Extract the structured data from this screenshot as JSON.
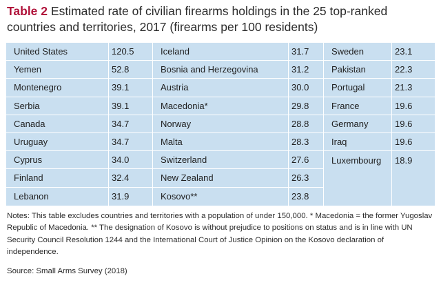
{
  "title": {
    "label": "Table 2",
    "text": "Estimated rate of civilian firearms holdings in the 25 top-ranked countries and territories, 2017 (firearms per 100 residents)"
  },
  "columns": [
    [
      {
        "name": "United States",
        "value": "120.5"
      },
      {
        "name": "Yemen",
        "value": "52.8"
      },
      {
        "name": "Montenegro",
        "value": "39.1"
      },
      {
        "name": "Serbia",
        "value": "39.1"
      },
      {
        "name": "Canada",
        "value": "34.7"
      },
      {
        "name": "Uruguay",
        "value": "34.7"
      },
      {
        "name": "Cyprus",
        "value": "34.0"
      },
      {
        "name": "Finland",
        "value": "32.4"
      },
      {
        "name": "Lebanon",
        "value": "31.9"
      }
    ],
    [
      {
        "name": "Iceland",
        "value": "31.7"
      },
      {
        "name": "Bosnia and Herzegovina",
        "value": "31.2"
      },
      {
        "name": "Austria",
        "value": "30.0"
      },
      {
        "name": "Macedonia*",
        "value": "29.8"
      },
      {
        "name": "Norway",
        "value": "28.8"
      },
      {
        "name": "Malta",
        "value": "28.3"
      },
      {
        "name": "Switzerland",
        "value": "27.6"
      },
      {
        "name": "New Zealand",
        "value": "26.3"
      },
      {
        "name": "Kosovo**",
        "value": "23.8"
      }
    ],
    [
      {
        "name": "Sweden",
        "value": "23.1"
      },
      {
        "name": "Pakistan",
        "value": "22.3"
      },
      {
        "name": "Portugal",
        "value": "21.3"
      },
      {
        "name": "France",
        "value": "19.6"
      },
      {
        "name": "Germany",
        "value": "19.6"
      },
      {
        "name": "Iraq",
        "value": "19.6"
      },
      {
        "name": "Luxembourg",
        "value": "18.9"
      }
    ]
  ],
  "notes": "Notes: This table excludes countries and territories with a population of under 150,000. * Macedonia = the former Yugoslav Republic of Macedonia. ** The designation of Kosovo is without prejudice to positions on status and is in line with UN Security Council Resolution 1244 and the International Court of Justice Opinion on the Kosovo declaration of independence.",
  "source": "Source: Small Arms Survey (2018)"
}
